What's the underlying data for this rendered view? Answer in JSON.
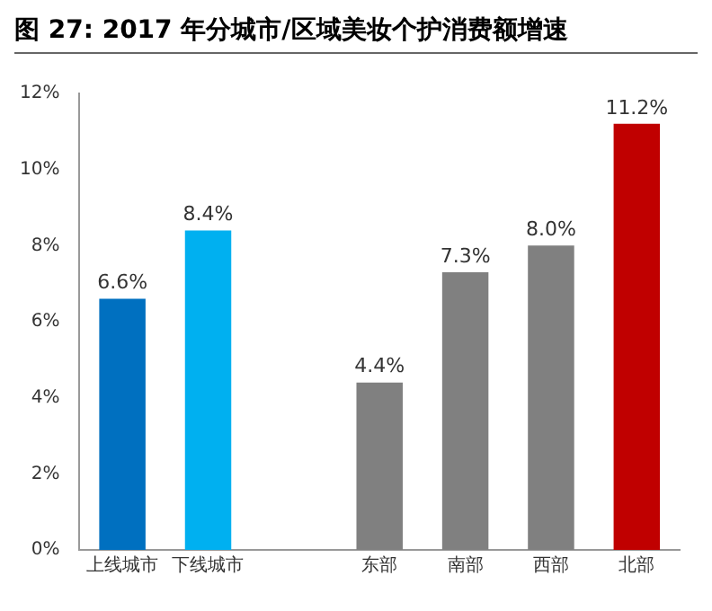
{
  "chart_data": {
    "type": "bar",
    "title": "图 27:  2017 年分城市/区域美妆个护消费额增速",
    "categories": [
      "上线城市",
      "下线城市",
      null,
      "东部",
      "南部",
      "西部",
      "北部"
    ],
    "values": [
      6.6,
      8.4,
      null,
      4.4,
      7.3,
      8.0,
      11.2
    ],
    "colors": [
      "#0070c0",
      "#00b0f0",
      "#808080",
      "#808080",
      "#808080",
      "#808080",
      "#c00000"
    ],
    "value_labels": [
      "6.6%",
      "8.4%",
      null,
      "4.4%",
      "7.3%",
      "8.0%",
      "11.2%"
    ],
    "ylim": [
      0,
      12
    ],
    "yticks": [
      {
        "value": 0,
        "label": "0%"
      },
      {
        "value": 2,
        "label": "2%"
      },
      {
        "value": 4,
        "label": "4%"
      },
      {
        "value": 6,
        "label": "6%"
      },
      {
        "value": 8,
        "label": "8%"
      },
      {
        "value": 10,
        "label": "10%"
      },
      {
        "value": 12,
        "label": "12%"
      }
    ],
    "grid": false
  }
}
